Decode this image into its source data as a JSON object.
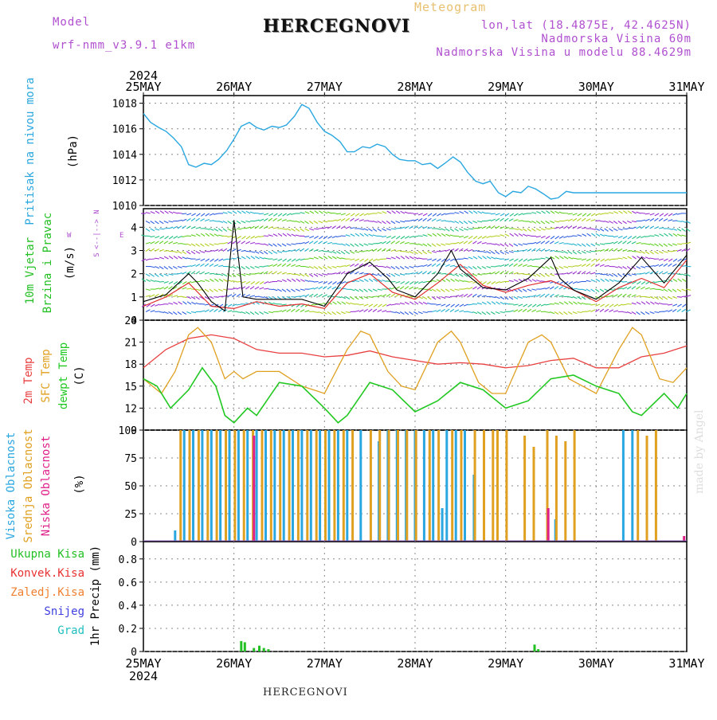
{
  "header": {
    "model_label": "Model",
    "model_name": "wrf-nmm_v3.9.1  e1km",
    "meteogram_label": "Meteogram",
    "title": "HERCEGNOVI",
    "lonlat": "lon,lat (18.4875E, 42.4625N)",
    "altitude": "Nadmorska Visina 60m",
    "model_altitude": "Nadmorska Visina u modelu 88.4629m",
    "year_top": "2024",
    "year_bottom": "2024",
    "footer": "HERCEGNOVI",
    "watermark": "made by Angel"
  },
  "colors": {
    "pressure": "#2aa7e0",
    "wind_label": "#22c022",
    "wind_speed": "#000000",
    "wind_gust": "#e03030",
    "temp2m": "#e84040",
    "sfc_temp": "#e0a020",
    "dewpt": "#22c822",
    "cloud_high": "#2aa7e0",
    "cloud_mid": "#e0a020",
    "cloud_low": "#e0208a",
    "precip_total": "#22c022",
    "precip_conv": "#e83030",
    "precip_frz": "#f08030",
    "precip_snow": "#4040e0",
    "precip_grad": "#20c0c0",
    "header_purple": "#b050d0",
    "header_gold": "#e8c070"
  },
  "axis": {
    "dates": [
      "25MAY",
      "26MAY",
      "27MAY",
      "28MAY",
      "29MAY",
      "30MAY",
      "31MAY"
    ]
  },
  "panels": {
    "pressure": {
      "ylabel_name": "Pritisak na nivou mora",
      "ylabel_unit": "(hPa)",
      "ticks": [
        "1010",
        "1012",
        "1014",
        "1016",
        "1018"
      ]
    },
    "wind": {
      "ylabel_name_1": "10m Vjetar",
      "ylabel_name_2": "Brzina i Pravac",
      "ylabel_unit": "(m/s)",
      "compass_w": "W",
      "compass_e": "E",
      "compass_n": "N",
      "compass_s": "S",
      "compass_arrow": "<--|-->",
      "ticks": [
        "0",
        "1",
        "2",
        "3",
        "4"
      ]
    },
    "temp": {
      "ylabel_1": "2m Temp",
      "ylabel_2": "SFC Temp",
      "ylabel_3": "dewpt Temp",
      "ylabel_unit": "(C)",
      "ticks": [
        "9",
        "12",
        "15",
        "18",
        "21",
        "24"
      ]
    },
    "cloud": {
      "ylabel_1": "Visoka Oblacnost",
      "ylabel_2": "Srednja Oblacnost",
      "ylabel_3": "Niska Oblacnost",
      "ylabel_unit": "(%)",
      "ticks": [
        "0",
        "25",
        "50",
        "75",
        "100"
      ]
    },
    "precip": {
      "legend": [
        "Ukupna Kisa",
        "Konvek.Kisa",
        "Zaledj.Kisa",
        "Snijeg",
        "Grad"
      ],
      "ylabel": "1hr Precip (mm)",
      "ticks": [
        "0",
        "0.2",
        "0.4",
        "0.6",
        "0.8"
      ]
    }
  },
  "chart_data": [
    {
      "type": "line",
      "name": "pressure",
      "x_range": [
        0,
        6
      ],
      "ylim": [
        1010,
        1018.6
      ],
      "grid": true,
      "series": [
        {
          "x": [
            0.0,
            0.08,
            0.17,
            0.25,
            0.33,
            0.42,
            0.5,
            0.58,
            0.67,
            0.75,
            0.83,
            0.92,
            1.0,
            1.08,
            1.17,
            1.25,
            1.33,
            1.42,
            1.5,
            1.58,
            1.67,
            1.75,
            1.83,
            1.92,
            2.0,
            2.08,
            2.17,
            2.25,
            2.33,
            2.42,
            2.5,
            2.58,
            2.67,
            2.75,
            2.83,
            2.92,
            3.0,
            3.08,
            3.17,
            3.25,
            3.33,
            3.42,
            3.5,
            3.58,
            3.67,
            3.75,
            3.83,
            3.92,
            4.0,
            4.08,
            4.17,
            4.25,
            4.33,
            4.42,
            4.5,
            4.58,
            4.67,
            4.75,
            4.83,
            4.92,
            5.0,
            5.08,
            5.17,
            5.25,
            5.33,
            5.42,
            5.5,
            5.58,
            5.67,
            5.75,
            5.83,
            5.92,
            6.0
          ],
          "values": [
            1017.2,
            1016.5,
            1016.1,
            1015.8,
            1015.3,
            1014.6,
            1013.2,
            1013.0,
            1013.3,
            1013.2,
            1013.6,
            1014.3,
            1015.2,
            1016.2,
            1016.5,
            1016.1,
            1015.9,
            1016.2,
            1016.1,
            1016.3,
            1017.0,
            1017.9,
            1017.6,
            1016.5,
            1015.8,
            1015.5,
            1015.0,
            1014.2,
            1014.2,
            1014.6,
            1014.5,
            1014.8,
            1014.6,
            1014.0,
            1013.6,
            1013.5,
            1013.5,
            1013.2,
            1013.3,
            1012.9,
            1013.3,
            1013.8,
            1013.4,
            1012.6,
            1011.9,
            1011.7,
            1011.9,
            1011.0,
            1010.7,
            1011.1,
            1011.0,
            1011.5,
            1011.3,
            1010.9,
            1010.5,
            1010.6,
            1011.1,
            1011.0,
            1011.0,
            1011.0,
            1011.0,
            1011.0,
            1011.0,
            1011.0,
            1011.0,
            1011.0,
            1011.0,
            1011.0,
            1011.0,
            1011.0,
            1011.0,
            1011.0,
            1011.0
          ]
        }
      ]
    },
    {
      "type": "line",
      "name": "wind",
      "x_range": [
        0,
        6
      ],
      "ylim": [
        0,
        4.8
      ],
      "grid": true,
      "series": [
        {
          "key": "speed",
          "x": [
            0.0,
            0.25,
            0.5,
            0.6,
            0.75,
            0.9,
            1.0,
            1.1,
            1.25,
            1.5,
            1.75,
            2.0,
            2.25,
            2.5,
            2.7,
            2.8,
            3.0,
            3.25,
            3.4,
            3.5,
            3.75,
            4.0,
            4.25,
            4.5,
            4.6,
            4.75,
            5.0,
            5.25,
            5.5,
            5.75,
            6.0
          ],
          "values": [
            0.8,
            1.1,
            2.0,
            1.6,
            0.8,
            0.4,
            4.3,
            1.0,
            0.9,
            0.9,
            0.9,
            0.6,
            2.0,
            2.5,
            1.8,
            1.3,
            1.0,
            2.0,
            3.0,
            2.2,
            1.4,
            1.3,
            1.8,
            2.7,
            1.8,
            1.3,
            0.9,
            1.6,
            2.7,
            1.6,
            2.8
          ]
        },
        {
          "key": "gust",
          "x": [
            0.0,
            0.25,
            0.5,
            0.75,
            1.0,
            1.25,
            1.5,
            1.75,
            2.0,
            2.25,
            2.5,
            2.75,
            3.0,
            3.25,
            3.5,
            3.75,
            4.0,
            4.25,
            4.5,
            4.75,
            5.0,
            5.25,
            5.5,
            5.75,
            6.0
          ],
          "values": [
            0.6,
            1.0,
            1.6,
            0.6,
            0.5,
            0.8,
            0.6,
            0.7,
            0.5,
            1.6,
            2.0,
            1.2,
            0.9,
            1.6,
            2.4,
            1.5,
            1.2,
            1.5,
            1.7,
            1.3,
            0.8,
            1.4,
            1.8,
            1.4,
            2.6
          ]
        }
      ]
    },
    {
      "type": "line",
      "name": "temperature",
      "x_range": [
        0,
        6
      ],
      "ylim": [
        9,
        24
      ],
      "grid": true,
      "series": [
        {
          "key": "temp2m",
          "x": [
            0.0,
            0.25,
            0.5,
            0.75,
            1.0,
            1.25,
            1.5,
            1.75,
            2.0,
            2.25,
            2.5,
            2.75,
            3.0,
            3.25,
            3.5,
            3.75,
            4.0,
            4.25,
            4.5,
            4.75,
            5.0,
            5.25,
            5.5,
            5.75,
            6.0
          ],
          "values": [
            17.5,
            20.0,
            21.5,
            22.0,
            21.5,
            20.0,
            19.5,
            19.5,
            19.0,
            19.2,
            19.8,
            19.0,
            18.5,
            18.0,
            18.2,
            18.0,
            17.5,
            17.8,
            18.5,
            18.8,
            17.5,
            17.5,
            19.0,
            19.5,
            20.5
          ]
        },
        {
          "key": "sfc",
          "x": [
            0.0,
            0.2,
            0.35,
            0.5,
            0.6,
            0.75,
            0.9,
            1.0,
            1.1,
            1.25,
            1.5,
            1.75,
            2.0,
            2.25,
            2.4,
            2.5,
            2.7,
            2.85,
            3.0,
            3.25,
            3.4,
            3.5,
            3.7,
            3.85,
            4.0,
            4.25,
            4.4,
            4.5,
            4.7,
            4.85,
            5.0,
            5.25,
            5.4,
            5.5,
            5.7,
            5.85,
            6.0
          ],
          "values": [
            16,
            14,
            17,
            22,
            23,
            21,
            16,
            17,
            16,
            17,
            17,
            15,
            14,
            20,
            22.5,
            22,
            17,
            15,
            14.5,
            21,
            22.5,
            21,
            15.5,
            14,
            14,
            21,
            22,
            21,
            16,
            15,
            14,
            20,
            23,
            22,
            16,
            15.5,
            17.5
          ]
        },
        {
          "key": "dewpt",
          "x": [
            0.0,
            0.15,
            0.3,
            0.5,
            0.65,
            0.8,
            0.9,
            1.0,
            1.15,
            1.25,
            1.5,
            1.75,
            2.0,
            2.15,
            2.25,
            2.5,
            2.75,
            3.0,
            3.25,
            3.5,
            3.75,
            4.0,
            4.25,
            4.5,
            4.75,
            5.0,
            5.25,
            5.4,
            5.5,
            5.75,
            5.9,
            6.0
          ],
          "values": [
            16,
            15,
            12,
            14.5,
            17.5,
            15,
            11,
            10,
            12,
            11,
            15.5,
            15,
            12,
            10,
            11,
            15.5,
            14.5,
            11.5,
            13,
            15.5,
            14.5,
            12,
            13,
            16,
            16.5,
            15,
            14,
            11.5,
            11,
            14,
            12,
            14
          ]
        }
      ]
    },
    {
      "type": "bar",
      "name": "cloud",
      "x_range": [
        0,
        6
      ],
      "ylim": [
        0,
        100
      ],
      "grid": true,
      "series": [
        {
          "key": "high",
          "x": [
            0.35,
            0.45,
            0.55,
            0.65,
            0.75,
            0.85,
            0.95,
            1.05,
            1.15,
            1.25,
            1.35,
            1.45,
            1.55,
            1.65,
            1.75,
            1.85,
            1.95,
            2.05,
            2.15,
            2.25,
            2.4,
            2.6,
            2.7,
            2.8,
            2.9,
            3.0,
            3.1,
            3.2,
            3.3,
            3.35,
            3.45,
            3.55,
            3.65,
            3.75,
            3.85,
            3.95,
            4.05,
            4.15,
            4.25,
            4.35,
            4.45,
            4.55,
            4.65,
            4.75,
            4.85,
            4.95,
            5.05,
            5.15,
            5.25,
            5.3,
            5.4
          ],
          "values": [
            10,
            100,
            100,
            100,
            100,
            100,
            100,
            100,
            100,
            100,
            100,
            100,
            100,
            100,
            100,
            100,
            100,
            100,
            100,
            100,
            100,
            90,
            100,
            100,
            100,
            100,
            100,
            100,
            30,
            100,
            100,
            100,
            60,
            0,
            0,
            0,
            0,
            0,
            0,
            0,
            0,
            20,
            0,
            0,
            0,
            0,
            0,
            0,
            0,
            100,
            100
          ]
        },
        {
          "key": "mid",
          "x": [
            0.4,
            0.5,
            0.6,
            0.7,
            0.8,
            0.9,
            1.0,
            1.1,
            1.2,
            1.3,
            1.4,
            1.5,
            1.6,
            1.7,
            1.8,
            1.9,
            2.0,
            2.1,
            2.2,
            2.3,
            2.5,
            2.6,
            2.7,
            2.8,
            2.9,
            3.0,
            3.15,
            3.25,
            3.4,
            3.5,
            3.65,
            3.75,
            3.85,
            3.9,
            4.0,
            4.2,
            4.3,
            4.45,
            4.55,
            4.65,
            4.75,
            5.45,
            5.55,
            5.65
          ],
          "values": [
            100,
            100,
            100,
            100,
            100,
            100,
            100,
            100,
            100,
            100,
            100,
            100,
            100,
            100,
            100,
            100,
            100,
            100,
            100,
            100,
            100,
            100,
            100,
            100,
            100,
            100,
            100,
            100,
            100,
            100,
            100,
            100,
            100,
            100,
            100,
            95,
            85,
            100,
            95,
            90,
            100,
            100,
            95,
            100
          ]
        },
        {
          "key": "low",
          "x": [
            1.2,
            4.45,
            5.95
          ],
          "values": [
            95,
            30,
            5
          ]
        }
      ]
    },
    {
      "type": "bar",
      "name": "precipitation",
      "x_range": [
        0,
        6
      ],
      "ylim": [
        0,
        0.95
      ],
      "grid": true,
      "series": [
        {
          "key": "total",
          "x": [
            1.08,
            1.12,
            1.22,
            1.28,
            1.33,
            1.38,
            4.32,
            4.36
          ],
          "values": [
            0.09,
            0.08,
            0.03,
            0.05,
            0.03,
            0.02,
            0.06,
            0.02
          ]
        }
      ]
    }
  ]
}
